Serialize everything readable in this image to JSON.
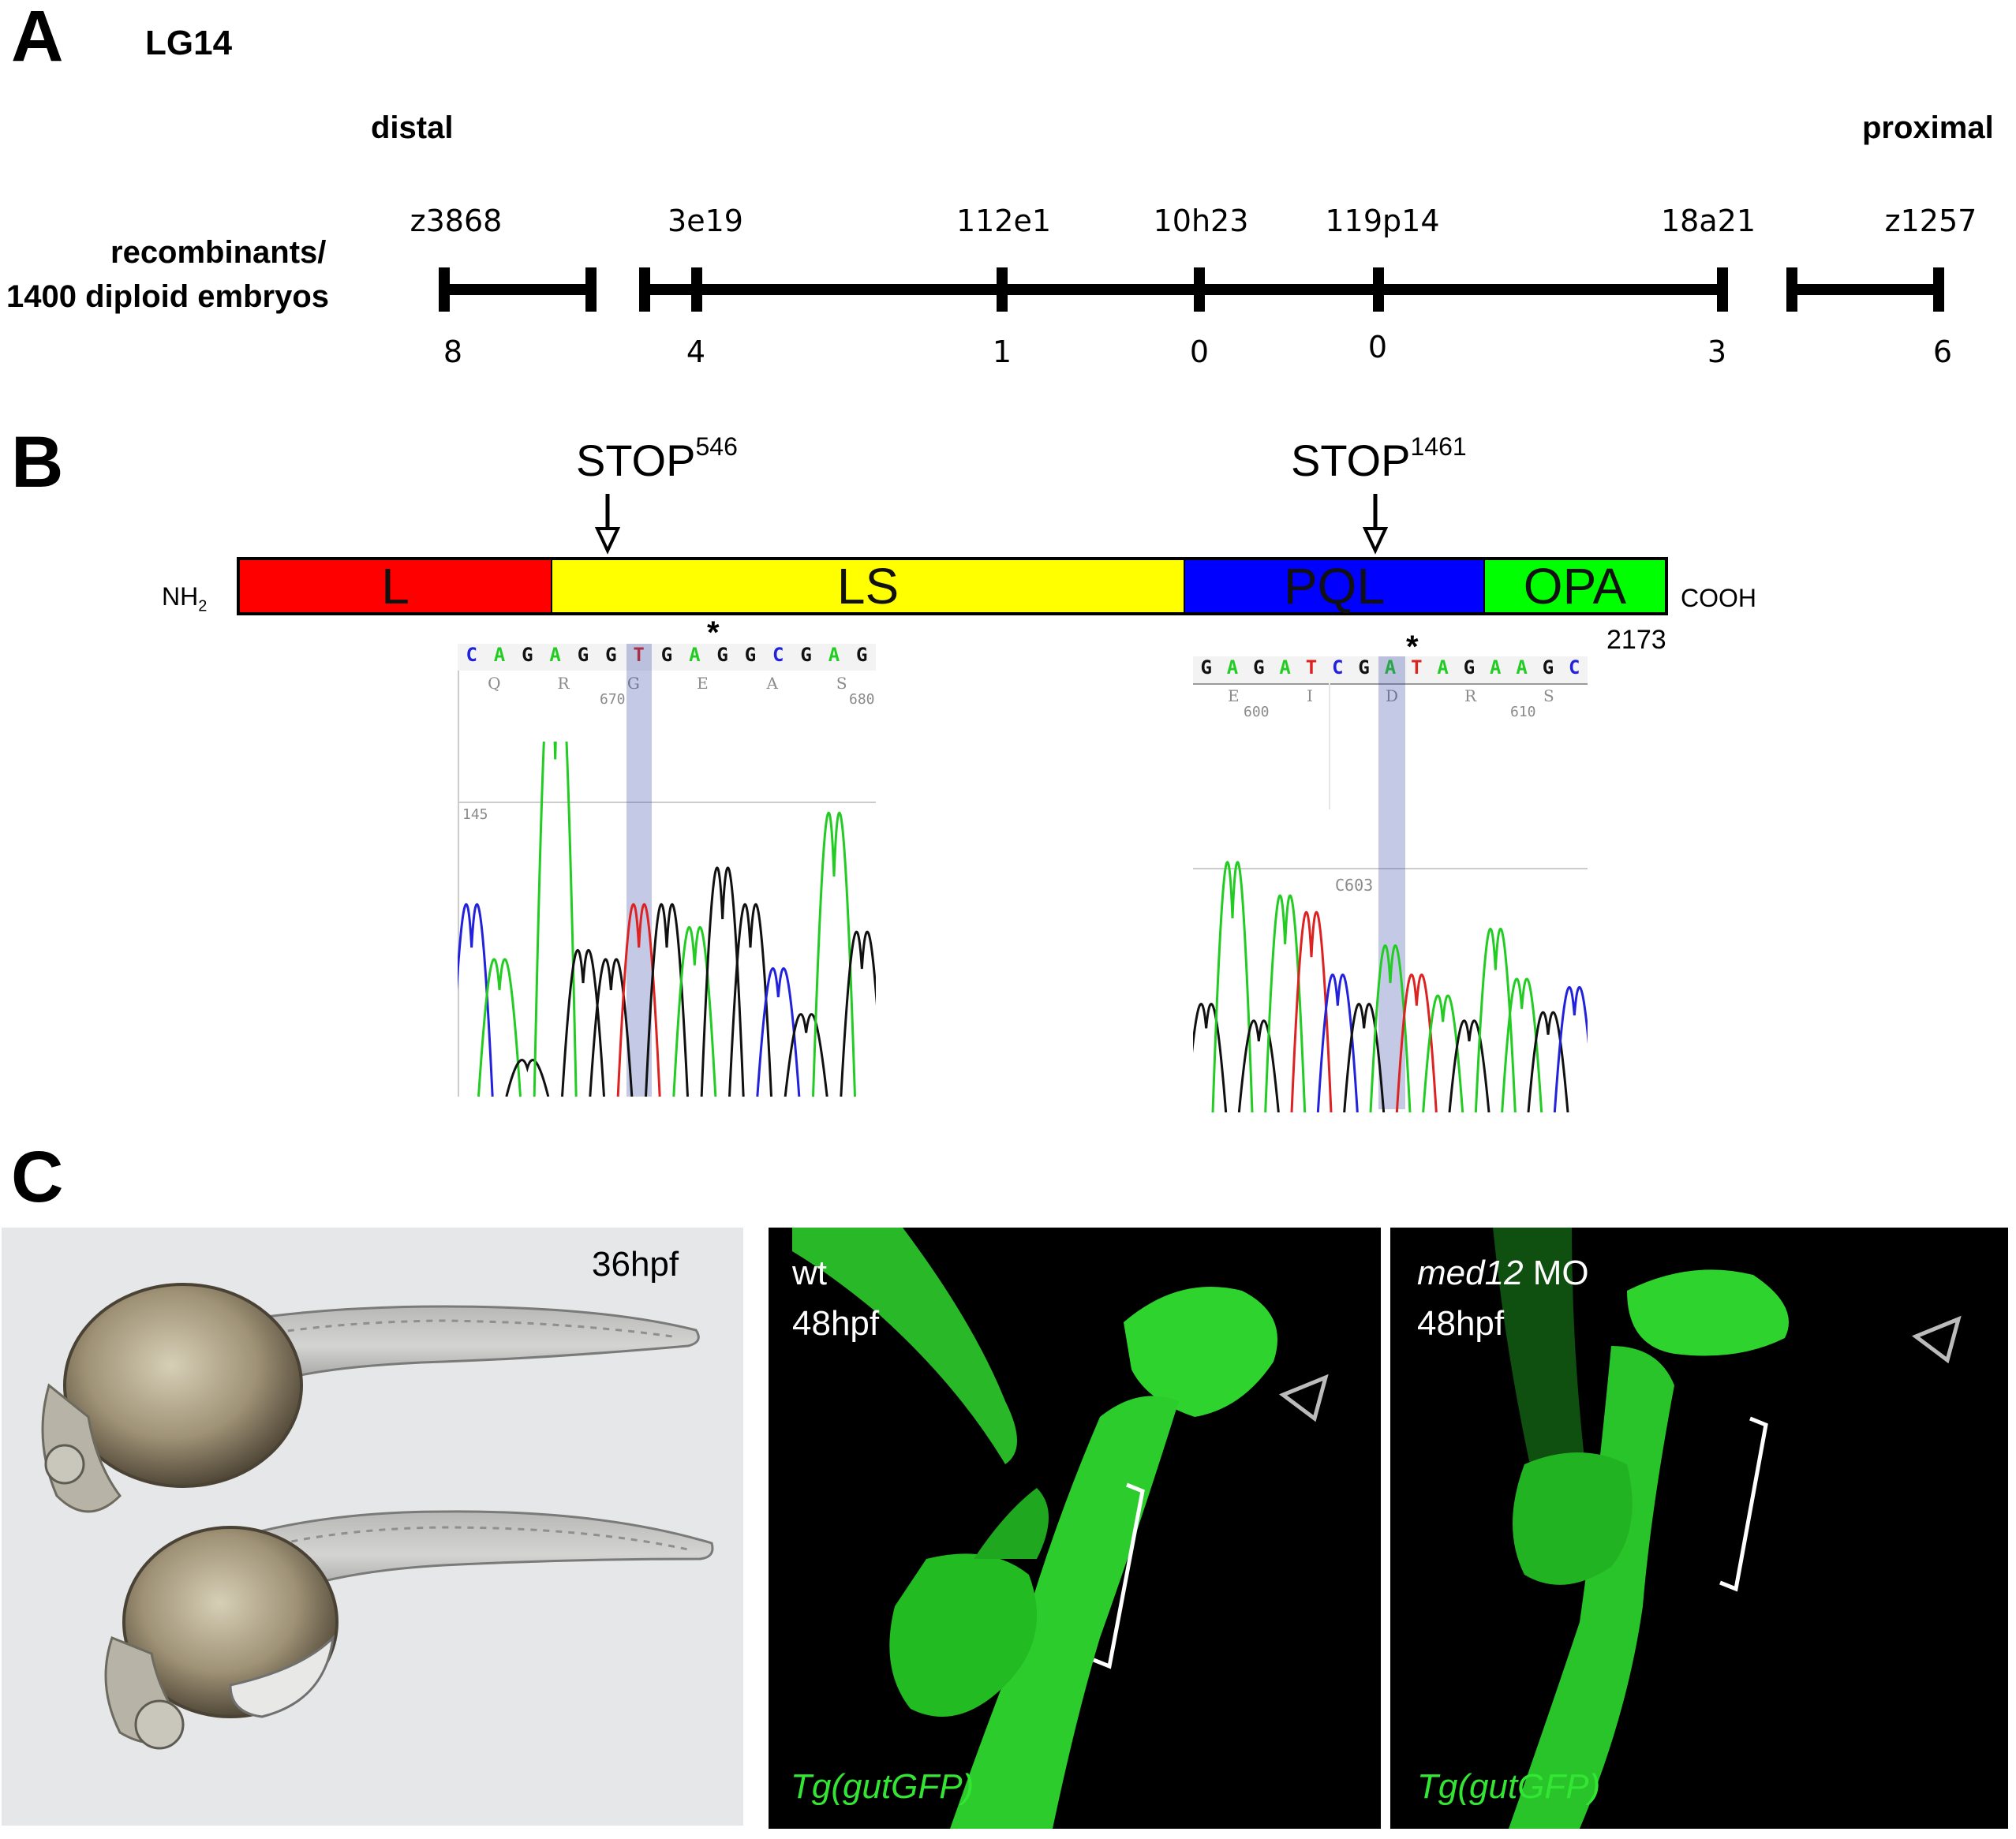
{
  "panel_a": {
    "letter": "A",
    "linkage_group": "LG14",
    "distal_label": "distal",
    "proximal_label": "proximal",
    "row_label_line1": "recombinants/",
    "row_label_line2": "1400 diploid embryos",
    "markers": [
      {
        "name": "z3868",
        "recombinants": "8"
      },
      {
        "name": "3e19",
        "recombinants": "4"
      },
      {
        "name": "112e1",
        "recombinants": "1"
      },
      {
        "name": "10h23",
        "recombinants": "0"
      },
      {
        "name": "119p14",
        "recombinants": "0"
      },
      {
        "name": "18a21",
        "recombinants": "3"
      },
      {
        "name": "z1257",
        "recombinants": "6"
      }
    ]
  },
  "panel_b": {
    "letter": "B",
    "n_terminus": "NH",
    "n_terminus_sub": "2",
    "c_terminus": "COOH",
    "length": "2173",
    "stop1_text": "STOP",
    "stop1_pos": "546",
    "stop2_text": "STOP",
    "stop2_pos": "1461",
    "domains": [
      {
        "label": "L",
        "color": "#ff0000"
      },
      {
        "label": "LS",
        "color": "#ffff00"
      },
      {
        "label": "PQL",
        "color": "#0000ff"
      },
      {
        "label": "OPA",
        "color": "#00ff00"
      }
    ],
    "trace1": {
      "sequence": [
        "C",
        "A",
        "G",
        "A",
        "G",
        "G",
        "T",
        "G",
        "A",
        "G",
        "G",
        "C",
        "G",
        "A",
        "G"
      ],
      "amino_acids": [
        "Q",
        "R",
        "G",
        "E",
        "A",
        "S"
      ],
      "pos_a": "670",
      "pos_b": "680",
      "scale": "145",
      "mutation_mark": "*"
    },
    "trace2": {
      "sequence": [
        "G",
        "A",
        "G",
        "A",
        "T",
        "C",
        "G",
        "A",
        "T",
        "A",
        "G",
        "A",
        "A",
        "G",
        "C"
      ],
      "amino_acids": [
        "E",
        "I",
        "D",
        "R",
        "S"
      ],
      "pos_a": "600",
      "pos_b": "610",
      "scale": "C603",
      "mutation_mark": "*"
    },
    "base_colors": {
      "A": "#22cc22",
      "C": "#2222dd",
      "G": "#111111",
      "T": "#dd2222"
    }
  },
  "panel_c": {
    "letter": "C",
    "photo1_label": "36hpf",
    "photo2_label1": "wt",
    "photo2_label2": "48hpf",
    "photo2_transgene": "Tg(gutGFP)",
    "photo3_label1_italic": "med12",
    "photo3_label1_rest": " MO",
    "photo3_label2": "48hpf",
    "photo3_transgene": "Tg(gutGFP)"
  }
}
